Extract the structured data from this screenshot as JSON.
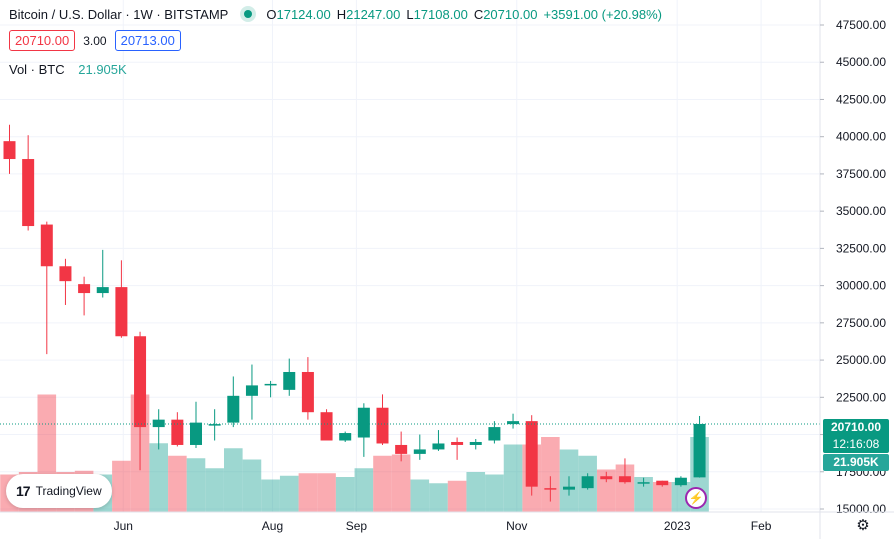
{
  "header": {
    "symbol_title": "Bitcoin / U.S. Dollar · 1W · BITSTAMP",
    "open_label": "O",
    "open_value": "17124.00",
    "high_label": "H",
    "high_value": "21247.00",
    "low_label": "L",
    "low_value": "17108.00",
    "close_label": "C",
    "close_value": "20710.00",
    "change_value": "+3591.00 (+20.98%)",
    "sell_price": "20710.00",
    "spread": "3.00",
    "buy_price": "20713.00",
    "volume_label": "Vol · BTC",
    "volume_value": "21.905K"
  },
  "price_axis": {
    "last_price_label": "20710.00",
    "countdown_label": "12:16:08",
    "volume_badge_label": "21.905K"
  },
  "branding": {
    "logo_text": "TradingView"
  },
  "icons": {
    "settings": "settings-icon",
    "live": "live-dot-icon",
    "bolt": "lightning-icon"
  },
  "colors": {
    "up": "#089981",
    "down": "#f23645",
    "vol_up": "#26a69a",
    "vol_down": "#f23645",
    "grid": "#f0f3fa",
    "last_price_line": "#089981"
  },
  "chart_data": {
    "type": "candlestick",
    "title": "Bitcoin / U.S. Dollar · 1W · BITSTAMP",
    "interval": "1W",
    "exchange": "BITSTAMP",
    "y_ticks": [
      15000,
      17500,
      20000,
      22500,
      25000,
      27500,
      30000,
      32500,
      35000,
      37500,
      40000,
      42500,
      45000,
      47500
    ],
    "y_tick_labels": [
      "15000.00",
      "17500.00",
      "20000.00",
      "22500.00",
      "25000.00",
      "27500.00",
      "30000.00",
      "32500.00",
      "35000.00",
      "37500.00",
      "40000.00",
      "42500.00",
      "45000.00",
      "47500.00"
    ],
    "ylim": [
      14700,
      49200
    ],
    "x_tick_labels": [
      "Jun",
      "Aug",
      "Sep",
      "Nov",
      "2023",
      "Feb"
    ],
    "x_tick_after_candle": [
      6.1,
      14.1,
      18.6,
      27.2,
      35.8,
      40.3
    ],
    "grid": true,
    "last_price": 20710,
    "candles": [
      {
        "open": 39700,
        "high": 40800,
        "low": 37500,
        "close": 38500
      },
      {
        "open": 38500,
        "high": 40100,
        "low": 33700,
        "close": 34000
      },
      {
        "open": 34100,
        "high": 34300,
        "low": 25400,
        "close": 31300
      },
      {
        "open": 31300,
        "high": 31800,
        "low": 28700,
        "close": 30300
      },
      {
        "open": 30100,
        "high": 30600,
        "low": 28000,
        "close": 29500
      },
      {
        "open": 29500,
        "high": 32400,
        "low": 29200,
        "close": 29900
      },
      {
        "open": 29900,
        "high": 31700,
        "low": 26500,
        "close": 26600
      },
      {
        "open": 26600,
        "high": 26900,
        "low": 17600,
        "close": 20500
      },
      {
        "open": 20500,
        "high": 21700,
        "low": 19000,
        "close": 21000
      },
      {
        "open": 21000,
        "high": 21500,
        "low": 19200,
        "close": 19300
      },
      {
        "open": 19300,
        "high": 22200,
        "low": 19100,
        "close": 20800
      },
      {
        "open": 20700,
        "high": 21700,
        "low": 19600,
        "close": 20700
      },
      {
        "open": 20800,
        "high": 23900,
        "low": 20500,
        "close": 22600
      },
      {
        "open": 22600,
        "high": 24700,
        "low": 21000,
        "close": 23300
      },
      {
        "open": 23300,
        "high": 23600,
        "low": 22500,
        "close": 23400
      },
      {
        "open": 23000,
        "high": 25100,
        "low": 22600,
        "close": 24200
      },
      {
        "open": 24200,
        "high": 25200,
        "low": 21000,
        "close": 21500
      },
      {
        "open": 21500,
        "high": 21700,
        "low": 19700,
        "close": 19600
      },
      {
        "open": 19600,
        "high": 20200,
        "low": 19500,
        "close": 20100
      },
      {
        "open": 19800,
        "high": 22100,
        "low": 18500,
        "close": 21800
      },
      {
        "open": 21800,
        "high": 22700,
        "low": 19300,
        "close": 19400
      },
      {
        "open": 19300,
        "high": 20200,
        "low": 18200,
        "close": 18700
      },
      {
        "open": 18700,
        "high": 20000,
        "low": 18300,
        "close": 19000
      },
      {
        "open": 19000,
        "high": 20300,
        "low": 18900,
        "close": 19400
      },
      {
        "open": 19500,
        "high": 19800,
        "low": 18300,
        "close": 19300
      },
      {
        "open": 19300,
        "high": 19700,
        "low": 19000,
        "close": 19500
      },
      {
        "open": 19600,
        "high": 20900,
        "low": 19400,
        "close": 20500
      },
      {
        "open": 20700,
        "high": 21400,
        "low": 20400,
        "close": 20900
      },
      {
        "open": 20900,
        "high": 21300,
        "low": 15900,
        "close": 16500
      },
      {
        "open": 16400,
        "high": 17200,
        "low": 15500,
        "close": 16300
      },
      {
        "open": 16300,
        "high": 17200,
        "low": 15900,
        "close": 16500
      },
      {
        "open": 16400,
        "high": 17400,
        "low": 16300,
        "close": 17200
      },
      {
        "open": 17200,
        "high": 17500,
        "low": 16800,
        "close": 17000
      },
      {
        "open": 17200,
        "high": 18400,
        "low": 16700,
        "close": 16800
      },
      {
        "open": 16700,
        "high": 17100,
        "low": 16500,
        "close": 16800
      },
      {
        "open": 16900,
        "high": 16900,
        "low": 16500,
        "close": 16600
      },
      {
        "open": 16600,
        "high": 17200,
        "low": 16500,
        "close": 17100
      },
      {
        "open": 17124,
        "high": 21247,
        "low": 17108,
        "close": 20710
      }
    ],
    "volumes": [
      0.3,
      0.32,
      0.94,
      0.32,
      0.33,
      0.3,
      0.41,
      0.94,
      0.55,
      0.45,
      0.43,
      0.35,
      0.51,
      0.42,
      0.26,
      0.29,
      0.31,
      0.31,
      0.28,
      0.35,
      0.45,
      0.46,
      0.26,
      0.23,
      0.25,
      0.32,
      0.3,
      0.54,
      0.54,
      0.6,
      0.5,
      0.45,
      0.34,
      0.38,
      0.28,
      0.24,
      0.24,
      0.6
    ],
    "volume_scale_note": "relative volume, fraction of largest bar"
  }
}
